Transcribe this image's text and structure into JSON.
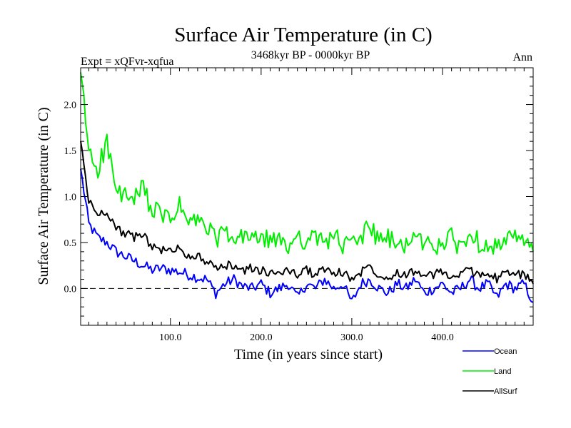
{
  "chart_data": {
    "type": "line",
    "title": "Surface Air Temperature (in C)",
    "subtitle": "3468kyr BP - 0000kyr BP",
    "experiment_label": "Expt = xQFvr-xqfua",
    "season_label": "Ann",
    "xlabel": "Time (in years since start)",
    "ylabel": "Surface Air Temperature (in C)",
    "xlim": [
      1,
      500
    ],
    "ylim": [
      -0.4,
      2.4
    ],
    "xticks": [
      100,
      200,
      300,
      400
    ],
    "xtick_labels": [
      "100.0",
      "200.0",
      "300.0",
      "400.0"
    ],
    "yticks": [
      0,
      0.5,
      1,
      1.5,
      2
    ],
    "ytick_labels": [
      "0.0",
      "0.5",
      "1.0",
      "1.5",
      "2.0"
    ],
    "zero_line": true,
    "grid": false,
    "legend_position": "bottom-right",
    "x": [
      1,
      10,
      20,
      30,
      40,
      50,
      60,
      70,
      80,
      90,
      100,
      110,
      120,
      130,
      140,
      150,
      160,
      170,
      180,
      190,
      200,
      210,
      220,
      230,
      240,
      250,
      260,
      270,
      280,
      290,
      300,
      310,
      320,
      330,
      340,
      350,
      360,
      370,
      380,
      390,
      400,
      410,
      420,
      430,
      440,
      450,
      460,
      470,
      480,
      490,
      500
    ],
    "series": [
      {
        "name": "Ocean",
        "color": "#0000ff",
        "values": [
          1.3,
          0.7,
          0.55,
          0.5,
          0.4,
          0.35,
          0.3,
          0.25,
          0.2,
          0.22,
          0.2,
          0.18,
          0.15,
          0.12,
          0.1,
          -0.05,
          0.05,
          0.1,
          0.02,
          0.0,
          0.05,
          -0.05,
          0.0,
          0.05,
          -0.1,
          0.05,
          0.0,
          0.1,
          0.0,
          0.05,
          -0.15,
          0.05,
          0.1,
          0.0,
          -0.05,
          0.05,
          0.0,
          0.1,
          -0.05,
          0.0,
          0.05,
          -0.05,
          0.0,
          0.1,
          0.0,
          0.05,
          -0.1,
          0.05,
          0.0,
          0.05,
          -0.15
        ]
      },
      {
        "name": "Land",
        "color": "#00ee00",
        "values": [
          2.35,
          1.5,
          1.3,
          1.6,
          1.05,
          1.0,
          0.95,
          1.1,
          0.85,
          0.8,
          0.75,
          0.9,
          0.7,
          0.75,
          0.65,
          0.55,
          0.6,
          0.5,
          0.55,
          0.6,
          0.5,
          0.55,
          0.5,
          0.45,
          0.6,
          0.5,
          0.55,
          0.5,
          0.6,
          0.45,
          0.5,
          0.55,
          0.7,
          0.5,
          0.55,
          0.45,
          0.5,
          0.55,
          0.5,
          0.45,
          0.5,
          0.55,
          0.45,
          0.6,
          0.5,
          0.5,
          0.45,
          0.5,
          0.55,
          0.5,
          0.4
        ]
      },
      {
        "name": "AllSurf",
        "color": "#000000",
        "values": [
          1.6,
          0.95,
          0.8,
          0.85,
          0.65,
          0.6,
          0.55,
          0.6,
          0.45,
          0.42,
          0.4,
          0.45,
          0.35,
          0.35,
          0.3,
          0.2,
          0.25,
          0.25,
          0.2,
          0.22,
          0.2,
          0.15,
          0.18,
          0.2,
          0.15,
          0.2,
          0.15,
          0.22,
          0.15,
          0.18,
          0.1,
          0.18,
          0.25,
          0.15,
          0.12,
          0.18,
          0.15,
          0.2,
          0.12,
          0.15,
          0.18,
          0.12,
          0.15,
          0.2,
          0.15,
          0.18,
          0.1,
          0.18,
          0.15,
          0.15,
          0.05
        ]
      }
    ]
  }
}
